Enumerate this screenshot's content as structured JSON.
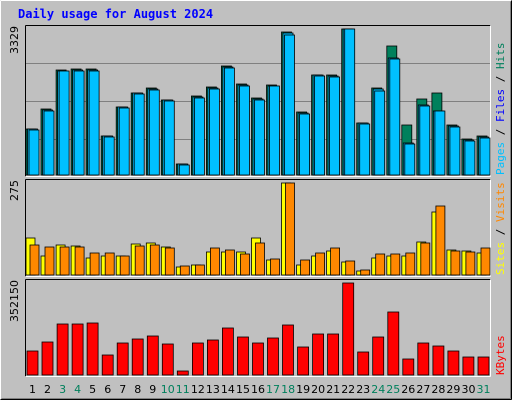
{
  "chart_data": {
    "type": "bar",
    "title": "Daily usage for August 2024",
    "x": [
      "1",
      "2",
      "3",
      "4",
      "5",
      "6",
      "7",
      "8",
      "9",
      "10",
      "11",
      "12",
      "13",
      "14",
      "15",
      "16",
      "17",
      "18",
      "19",
      "20",
      "21",
      "22",
      "23",
      "24",
      "25",
      "26",
      "27",
      "28",
      "29",
      "30",
      "31"
    ],
    "weekend_days": [
      "3",
      "4",
      "10",
      "11",
      "17",
      "18",
      "24",
      "25",
      "31"
    ],
    "panels": [
      {
        "max_label": "3329",
        "max": 3329,
        "side_labels": [
          "Pages",
          "Files",
          "Hits"
        ],
        "series": [
          {
            "name": "Hits",
            "values": [
              1060,
              1500,
              2390,
              2410,
              2410,
              890,
              1560,
              1880,
              1980,
              1720,
              250,
              1790,
              2010,
              2480,
              2080,
              1760,
              2060,
              3270,
              1430,
              2290,
              2280,
              3329,
              1190,
              1980,
              2940,
              1150,
              1730,
              1870,
              1140,
              810,
              900
            ]
          },
          {
            "name": "Files",
            "values": [
              1050,
              1480,
              2380,
              2400,
              2400,
              880,
              1540,
              1860,
              1960,
              1700,
              240,
              1770,
              1990,
              2460,
              2060,
              1740,
              2040,
              3230,
              1410,
              2270,
              2260,
              3329,
              1180,
              1950,
              2660,
              730,
              1600,
              1470,
              1110,
              790,
              870
            ]
          },
          {
            "name": "Pages",
            "values": [
              1030,
              1460,
              2370,
              2380,
              2380,
              860,
              1520,
              1840,
              1940,
              1680,
              230,
              1750,
              1970,
              2440,
              2040,
              1720,
              2020,
              3200,
              1390,
              2250,
              2240,
              3329,
              1160,
              1920,
              2640,
              710,
              1580,
              1450,
              1090,
              770,
              850
            ]
          }
        ]
      },
      {
        "max_label": "275",
        "max": 275,
        "side_labels": [
          "Sites",
          "Visits"
        ],
        "series": [
          {
            "name": "Sites",
            "values": [
              112,
              58,
              90,
              88,
              52,
              58,
              58,
              92,
              95,
              85,
              25,
              30,
              70,
              70,
              68,
              112,
              45,
              275,
              30,
              57,
              72,
              40,
              12,
              50,
              58,
              58,
              100,
              188,
              75,
              72,
              66
            ]
          },
          {
            "name": "Visits",
            "values": [
              90,
              85,
              85,
              85,
              67,
              65,
              58,
              88,
              90,
              80,
              26,
              30,
              82,
              75,
              62,
              95,
              48,
              275,
              45,
              65,
              80,
              42,
              15,
              63,
              62,
              65,
              95,
              205,
              72,
              70,
              80
            ]
          }
        ]
      },
      {
        "max_label": "352150",
        "max": 352150,
        "side_labels": [
          "KBytes"
        ],
        "series": [
          {
            "name": "KBytes",
            "values": [
              93000,
              128000,
              196000,
              196000,
              200000,
              75000,
              124000,
              136000,
              150000,
              120000,
              17000,
              124000,
              134000,
              178000,
              146000,
              122000,
              142000,
              190000,
              109000,
              156000,
              156000,
              352150,
              88000,
              144000,
              242000,
              60000,
              123000,
              110000,
              90000,
              68000,
              68000
            ]
          }
        ]
      }
    ],
    "colors": {
      "hits": "#00805c",
      "files": "#00c0ff",
      "pages": "#00c0ff",
      "sites": "#ffff00",
      "visits": "#ff8800",
      "kbytes": "#ff0000",
      "title": "#0000ff",
      "weekend": "#00805c",
      "weekday": "#000000",
      "bg": "#c0c0c0",
      "panel": "#c0c0c0"
    }
  }
}
